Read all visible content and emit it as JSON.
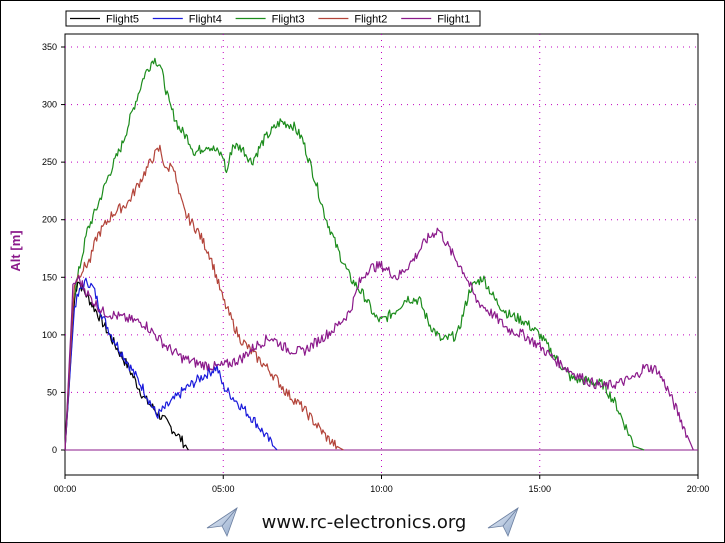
{
  "chart_data": {
    "type": "line",
    "title": "",
    "xlabel": "",
    "ylabel": "Alt [m]",
    "xlim": [
      0,
      20
    ],
    "ylim": [
      0,
      360
    ],
    "x_unit": "minutes",
    "x_ticks": [
      {
        "v": 0,
        "label": "00:00"
      },
      {
        "v": 5,
        "label": "05:00"
      },
      {
        "v": 10,
        "label": "10:00"
      },
      {
        "v": 15,
        "label": "15:00"
      },
      {
        "v": 20,
        "label": "20:00"
      }
    ],
    "y_ticks": [
      0,
      50,
      100,
      150,
      200,
      250,
      300,
      350
    ],
    "grid": true,
    "legend_position": "top",
    "series": [
      {
        "name": "Flight5",
        "color": "#000000",
        "x": [
          0,
          0.3,
          0.4,
          0.6,
          1.0,
          1.5,
          2.0,
          2.5,
          3.0,
          3.5,
          3.7,
          3.85,
          3.9
        ],
        "y": [
          0,
          130,
          148,
          138,
          120,
          95,
          72,
          45,
          30,
          15,
          8,
          2,
          0
        ]
      },
      {
        "name": "Flight4",
        "color": "#1a1adb",
        "x": [
          0,
          0.3,
          0.5,
          0.7,
          0.9,
          1.2,
          1.5,
          2.0,
          2.5,
          2.9,
          3.3,
          3.8,
          4.3,
          4.8,
          5.0,
          5.5,
          6.0,
          6.4,
          6.6,
          6.7
        ],
        "y": [
          0,
          125,
          140,
          147,
          140,
          115,
          98,
          75,
          52,
          30,
          40,
          53,
          63,
          72,
          55,
          40,
          25,
          10,
          3,
          0
        ]
      },
      {
        "name": "Flight3",
        "color": "#1c8c1c",
        "x": [
          0,
          0.25,
          0.4,
          0.7,
          1.0,
          1.4,
          1.8,
          2.2,
          2.5,
          2.8,
          3.0,
          3.3,
          3.6,
          3.9,
          4.1,
          4.5,
          5.0,
          5.1,
          5.3,
          5.6,
          5.9,
          6.3,
          6.8,
          7.2,
          7.5,
          7.9,
          8.2,
          8.6,
          9.0,
          9.5,
          9.8,
          10.0,
          10.4,
          10.8,
          11.2,
          11.5,
          11.9,
          12.4,
          12.8,
          13.2,
          13.6,
          14.0,
          14.5,
          15.0,
          15.5,
          16.0,
          16.5,
          17.0,
          17.4,
          17.8,
          18.0,
          18.3
        ],
        "y": [
          0,
          130,
          150,
          190,
          210,
          240,
          265,
          300,
          325,
          340,
          335,
          300,
          280,
          270,
          258,
          265,
          255,
          240,
          265,
          262,
          250,
          270,
          285,
          282,
          270,
          235,
          205,
          175,
          150,
          132,
          115,
          112,
          120,
          132,
          130,
          110,
          95,
          100,
          140,
          150,
          130,
          118,
          112,
          100,
          80,
          62,
          60,
          57,
          40,
          15,
          3,
          0
        ]
      },
      {
        "name": "Flight2",
        "color": "#b3443a",
        "x": [
          0,
          0.3,
          0.5,
          0.8,
          1.0,
          1.5,
          2.0,
          2.5,
          2.8,
          3.0,
          3.2,
          3.4,
          3.6,
          3.8,
          4.2,
          4.6,
          5.0,
          5.5,
          6.0,
          6.5,
          7.0,
          7.5,
          8.0,
          8.3,
          8.6,
          8.8
        ],
        "y": [
          0,
          145,
          155,
          165,
          185,
          205,
          215,
          240,
          255,
          262,
          242,
          250,
          222,
          205,
          190,
          168,
          130,
          98,
          82,
          68,
          50,
          37,
          20,
          10,
          3,
          0
        ]
      },
      {
        "name": "Flight1",
        "color": "#8b1a8b",
        "x": [
          0,
          0.25,
          0.4,
          0.8,
          1.2,
          1.8,
          2.5,
          3.2,
          3.7,
          4.2,
          4.8,
          5.2,
          5.6,
          6.0,
          6.5,
          7.0,
          7.5,
          8.0,
          8.5,
          9.0,
          9.3,
          9.6,
          10.0,
          10.5,
          11.0,
          11.4,
          11.8,
          12.2,
          12.6,
          13.0,
          13.5,
          14.0,
          14.5,
          15.0,
          15.5,
          16.0,
          16.5,
          17.0,
          17.5,
          18.0,
          18.3,
          18.7,
          19.0,
          19.4,
          19.7,
          19.85
        ],
        "y": [
          0,
          140,
          150,
          132,
          120,
          115,
          110,
          90,
          80,
          75,
          72,
          75,
          80,
          90,
          98,
          88,
          85,
          95,
          105,
          120,
          145,
          158,
          160,
          150,
          165,
          182,
          192,
          172,
          155,
          130,
          118,
          105,
          100,
          90,
          78,
          68,
          60,
          55,
          58,
          63,
          72,
          70,
          55,
          30,
          10,
          0
        ]
      }
    ]
  },
  "footer": {
    "text": "www.rc-electronics.org",
    "icon": "paper-plane-icon"
  }
}
